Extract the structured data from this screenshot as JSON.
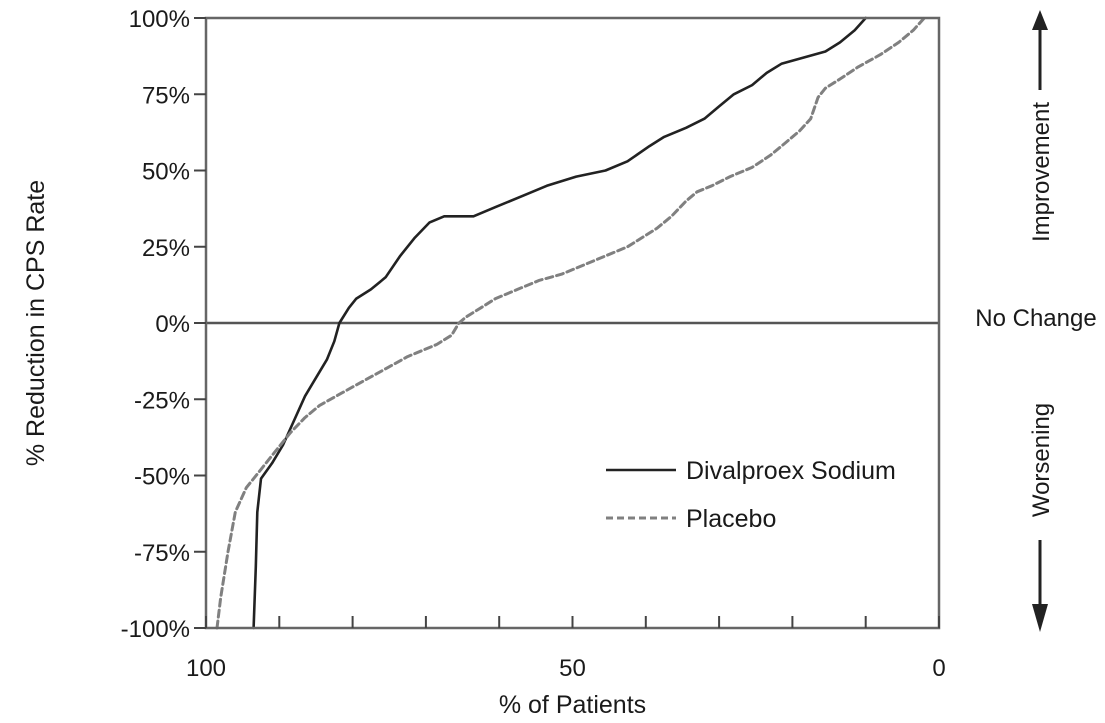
{
  "chart_data": {
    "type": "line",
    "title": "",
    "xlabel": "% of Patients",
    "ylabel": "% Reduction in CPS Rate",
    "xlim": [
      100,
      0
    ],
    "ylim": [
      -100,
      100
    ],
    "x_ticks": [
      100,
      50,
      0
    ],
    "x_minor_ticks": [
      100,
      90,
      80,
      70,
      60,
      50,
      40,
      30,
      20,
      10,
      0
    ],
    "y_ticks": [
      {
        "value": 100,
        "label": "100%"
      },
      {
        "value": 75,
        "label": "75%"
      },
      {
        "value": 50,
        "label": "50%"
      },
      {
        "value": 25,
        "label": "25%"
      },
      {
        "value": 0,
        "label": "0%"
      },
      {
        "value": -25,
        "label": "-25%"
      },
      {
        "value": -50,
        "label": "-50%"
      },
      {
        "value": -75,
        "label": "-75%"
      },
      {
        "value": -100,
        "label": "-100%"
      }
    ],
    "reference_line": {
      "y": 0
    },
    "side_annotations": {
      "improvement": "Improvement",
      "no_change": "No Change",
      "worsening": "Worsening"
    },
    "legend": {
      "placement": "bottom-right"
    },
    "series": [
      {
        "name": "Divalproex Sodium",
        "style": "solid",
        "color": "#222222",
        "points": [
          [
            93.5,
            -100
          ],
          [
            93.2,
            -80
          ],
          [
            93.0,
            -62
          ],
          [
            92.5,
            -51
          ],
          [
            91.0,
            -46
          ],
          [
            89.5,
            -40
          ],
          [
            88.0,
            -32
          ],
          [
            86.5,
            -24
          ],
          [
            85.0,
            -18
          ],
          [
            83.5,
            -12
          ],
          [
            82.5,
            -6
          ],
          [
            81.8,
            0
          ],
          [
            80.5,
            5
          ],
          [
            79.5,
            8
          ],
          [
            77.5,
            11
          ],
          [
            75.5,
            15
          ],
          [
            73.5,
            22
          ],
          [
            71.5,
            28
          ],
          [
            69.5,
            33
          ],
          [
            67.5,
            35
          ],
          [
            63.5,
            35
          ],
          [
            60.5,
            38
          ],
          [
            56.5,
            42
          ],
          [
            53.5,
            45
          ],
          [
            49.5,
            48
          ],
          [
            45.5,
            50
          ],
          [
            42.5,
            53
          ],
          [
            39.5,
            58
          ],
          [
            37.5,
            61
          ],
          [
            34.5,
            64
          ],
          [
            32.0,
            67
          ],
          [
            30.0,
            71
          ],
          [
            28.0,
            75
          ],
          [
            25.5,
            78
          ],
          [
            23.5,
            82
          ],
          [
            21.5,
            85
          ],
          [
            18.5,
            87
          ],
          [
            15.5,
            89
          ],
          [
            13.5,
            92
          ],
          [
            11.5,
            96
          ],
          [
            10.0,
            100
          ]
        ]
      },
      {
        "name": "Placebo",
        "style": "dashed",
        "color": "#808080",
        "points": [
          [
            98.5,
            -100
          ],
          [
            98.0,
            -90
          ],
          [
            97.0,
            -75
          ],
          [
            96.0,
            -62
          ],
          [
            94.5,
            -54
          ],
          [
            92.5,
            -48
          ],
          [
            90.5,
            -42
          ],
          [
            88.5,
            -36
          ],
          [
            86.5,
            -31
          ],
          [
            84.5,
            -27
          ],
          [
            81.5,
            -23
          ],
          [
            78.5,
            -19
          ],
          [
            75.5,
            -15
          ],
          [
            72.5,
            -11
          ],
          [
            68.5,
            -7
          ],
          [
            66.5,
            -4
          ],
          [
            65.5,
            0
          ],
          [
            64.5,
            2
          ],
          [
            62.5,
            5
          ],
          [
            60.5,
            8
          ],
          [
            57.5,
            11
          ],
          [
            54.5,
            14
          ],
          [
            51.5,
            16
          ],
          [
            48.5,
            19
          ],
          [
            45.5,
            22
          ],
          [
            42.5,
            25
          ],
          [
            40.5,
            28
          ],
          [
            38.5,
            31
          ],
          [
            36.5,
            35
          ],
          [
            34.5,
            40
          ],
          [
            33.0,
            43
          ],
          [
            31.0,
            45
          ],
          [
            28.5,
            48
          ],
          [
            25.5,
            51
          ],
          [
            23.0,
            55
          ],
          [
            21.0,
            59
          ],
          [
            19.0,
            63
          ],
          [
            17.5,
            67
          ],
          [
            16.5,
            74
          ],
          [
            15.5,
            77
          ],
          [
            13.5,
            80
          ],
          [
            11.0,
            84
          ],
          [
            8.0,
            88
          ],
          [
            5.5,
            92
          ],
          [
            3.5,
            96
          ],
          [
            2.0,
            100
          ]
        ]
      }
    ]
  }
}
